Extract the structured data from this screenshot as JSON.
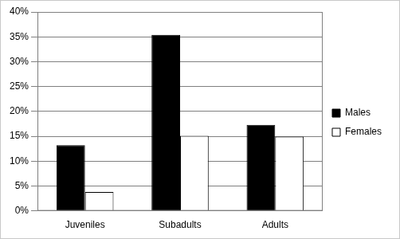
{
  "chart_data": {
    "type": "bar",
    "categories": [
      "Juveniles",
      "Subadults",
      "Adults"
    ],
    "series": [
      {
        "name": "Males",
        "color": "#000000",
        "values": [
          13.2,
          35.4,
          17.3
        ]
      },
      {
        "name": "Females",
        "color": "#ffffff",
        "values": [
          3.8,
          15.1,
          14.9
        ]
      }
    ],
    "ylim": [
      0,
      40
    ],
    "yticks": [
      {
        "value": 0,
        "label": "0%"
      },
      {
        "value": 5,
        "label": "5%"
      },
      {
        "value": 10,
        "label": "10%"
      },
      {
        "value": 15,
        "label": "15%"
      },
      {
        "value": 20,
        "label": "20%"
      },
      {
        "value": 25,
        "label": "25%"
      },
      {
        "value": 30,
        "label": "30%"
      },
      {
        "value": 35,
        "label": "35%"
      },
      {
        "value": 40,
        "label": "40%"
      }
    ],
    "grid": true,
    "legend": "right"
  }
}
